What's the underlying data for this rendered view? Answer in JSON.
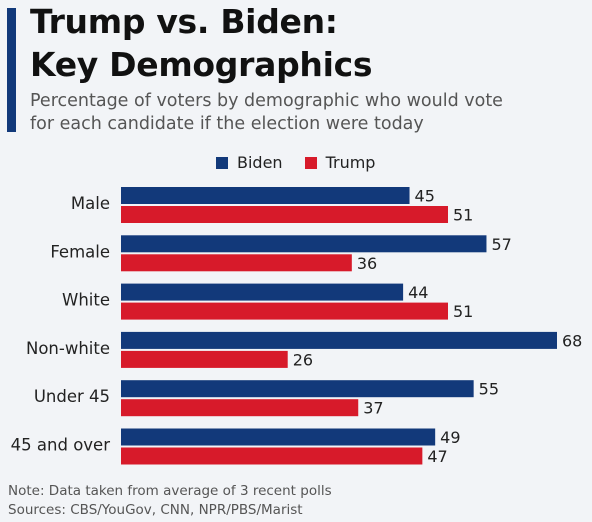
{
  "header": {
    "title_line1": "Trump vs. Biden:",
    "title_line2": "Key Demographics",
    "subtitle_line1": "Percentage of voters by demographic who would vote",
    "subtitle_line2": "for each candidate if the election were today"
  },
  "colors": {
    "biden": "#12397a",
    "trump": "#d71a2a",
    "accent": "#12397a"
  },
  "chart_data": {
    "type": "bar",
    "orientation": "horizontal",
    "categories": [
      "Male",
      "Female",
      "White",
      "Non-white",
      "Under 45",
      "45 and over"
    ],
    "series": [
      {
        "name": "Biden",
        "values": [
          45,
          57,
          44,
          68,
          55,
          49
        ]
      },
      {
        "name": "Trump",
        "values": [
          51,
          36,
          51,
          26,
          37,
          47
        ]
      }
    ],
    "xlim": [
      0,
      68
    ],
    "grid": false,
    "legend_position": "top"
  },
  "footer": {
    "note": "Note: Data taken from average of 3 recent polls",
    "sources": "Sources: CBS/YouGov, CNN, NPR/PBS/Marist"
  }
}
